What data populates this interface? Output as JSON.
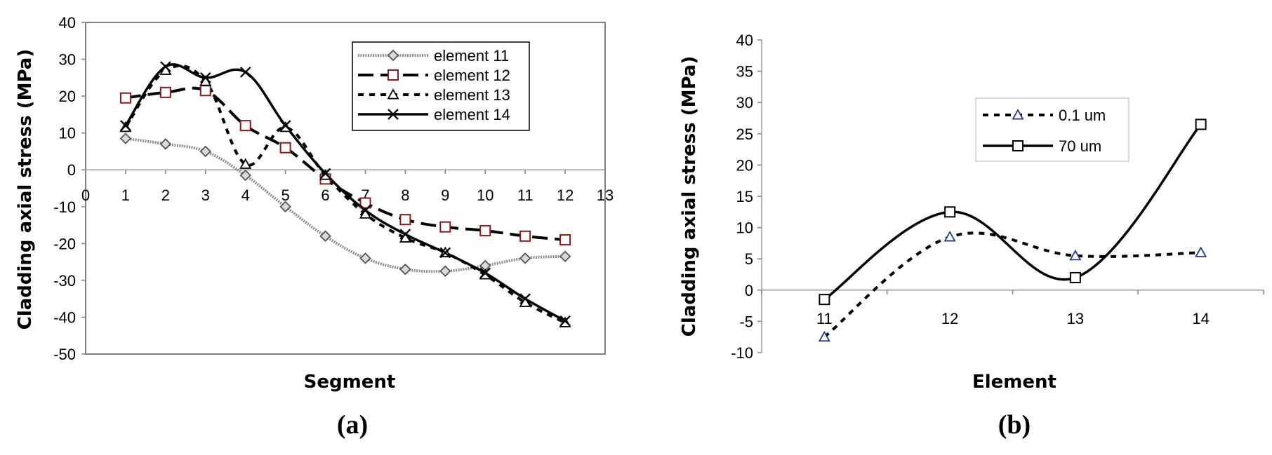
{
  "chart_data": [
    {
      "panel": "(a)",
      "type": "line",
      "xlabel": "Segment",
      "ylabel": "Cladding axial stress (MPa)",
      "xlim": [
        0,
        13
      ],
      "ylim": [
        -50,
        40
      ],
      "xticks": [
        "0",
        "1",
        "2",
        "3",
        "4",
        "5",
        "6",
        "7",
        "8",
        "9",
        "10",
        "11",
        "12",
        "13"
      ],
      "yticks": [
        "40",
        "30",
        "20",
        "10",
        "0",
        "-10",
        "-20",
        "-30",
        "-40",
        "-50"
      ],
      "legend_position": "top-right",
      "grid": false,
      "x": [
        1,
        2,
        3,
        4,
        5,
        6,
        7,
        8,
        9,
        10,
        11,
        12
      ],
      "series": [
        {
          "name": "element 11",
          "marker": "diamond",
          "line": "dotted-gray",
          "color": "#8c8c8c",
          "values": [
            8.5,
            7,
            5,
            -1.5,
            -10,
            -18,
            -24,
            -27,
            -27.5,
            -26,
            -24,
            -23.5
          ]
        },
        {
          "name": "element 12",
          "marker": "square",
          "line": "long-dash",
          "color": "#000000",
          "marker_color": "#8b1a1a",
          "values": [
            19.5,
            21,
            21.5,
            12,
            6,
            -2.5,
            -9,
            -13.5,
            -15.5,
            -16.5,
            -18,
            -19
          ]
        },
        {
          "name": "element 13",
          "marker": "triangle",
          "line": "short-dash",
          "color": "#000000",
          "values": [
            11.5,
            27,
            24,
            1.5,
            11.5,
            -1.5,
            -12,
            -18.5,
            -22.5,
            -28.5,
            -36,
            -41.5
          ]
        },
        {
          "name": "element 14",
          "marker": "x",
          "line": "solid",
          "color": "#000000",
          "values": [
            12,
            28,
            25,
            26.5,
            12,
            -1,
            -11,
            -17.5,
            -22.5,
            -28,
            -35,
            -41
          ]
        }
      ]
    },
    {
      "panel": "(b)",
      "type": "line",
      "xlabel": "Element",
      "ylabel": "Cladding axial stress (MPa)",
      "categories": [
        "11",
        "12",
        "13",
        "14"
      ],
      "ylim": [
        -10,
        40
      ],
      "yticks": [
        "40",
        "35",
        "30",
        "25",
        "20",
        "15",
        "10",
        "5",
        "0",
        "-5",
        "-10"
      ],
      "legend_position": "top-center",
      "grid": false,
      "series": [
        {
          "name": "0.1 um",
          "marker": "triangle",
          "line": "short-dash",
          "color": "#000000",
          "marker_color": "#1f3a8a",
          "values": [
            -7.5,
            8.5,
            5.5,
            6
          ]
        },
        {
          "name": "70 um",
          "marker": "square",
          "line": "solid",
          "color": "#000000",
          "values": [
            -1.5,
            12.5,
            2,
            26.5
          ]
        }
      ]
    }
  ]
}
